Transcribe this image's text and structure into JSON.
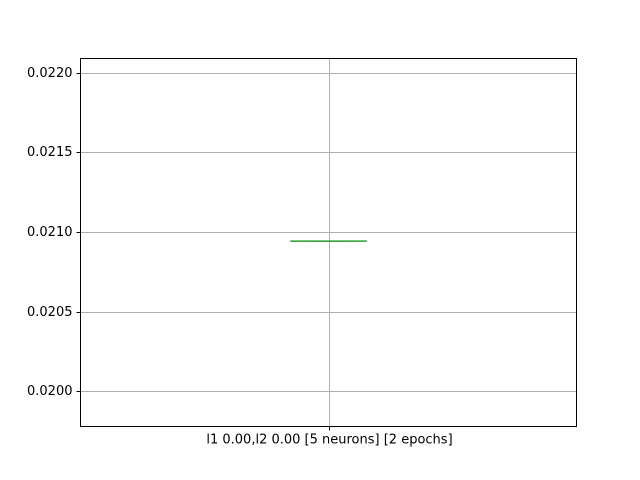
{
  "chart_data": {
    "type": "box",
    "title": "",
    "xlabel": "",
    "ylabel": "",
    "ylim": [
      0.01978,
      0.02209
    ],
    "yticks": [
      0.02,
      0.0205,
      0.021,
      0.0215,
      0.022
    ],
    "ytick_labels": [
      "0.0200",
      "0.0205",
      "0.0210",
      "0.0215",
      "0.0220"
    ],
    "grid": true,
    "categories": [
      "l1 0.00,l2 0.00 [5 neurons] [2 epochs]"
    ],
    "boxes": [
      {
        "category": "l1 0.00,l2 0.00 [5 neurons] [2 epochs]",
        "whisker_low": 0.020944,
        "q1": 0.020944,
        "median": 0.020944,
        "q3": 0.020944,
        "whisker_high": 0.020944
      }
    ],
    "colors": {
      "box": "#1f77b4",
      "median": "#2ca02c",
      "grid": "#b0b0b0",
      "frame": "#000000"
    }
  }
}
